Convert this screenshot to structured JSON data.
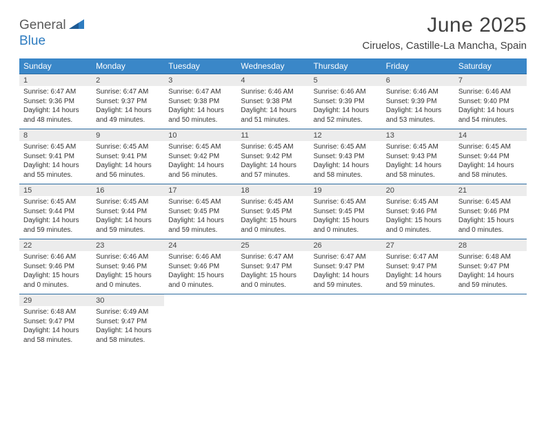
{
  "logo": {
    "part1": "General",
    "part2": "Blue"
  },
  "title": "June 2025",
  "location": "Ciruelos, Castille-La Mancha, Spain",
  "colors": {
    "header_bg": "#3a87c8",
    "header_text": "#ffffff",
    "daynum_bg": "#ececec",
    "row_border": "#2a6aa0",
    "logo_blue": "#2e7cc0",
    "logo_gray": "#5a5a5a",
    "page_bg": "#ffffff",
    "text": "#333333"
  },
  "typography": {
    "title_fontsize": 30,
    "location_fontsize": 15,
    "header_fontsize": 12,
    "daynum_fontsize": 11,
    "detail_fontsize": 10
  },
  "weekdays": [
    "Sunday",
    "Monday",
    "Tuesday",
    "Wednesday",
    "Thursday",
    "Friday",
    "Saturday"
  ],
  "weeks": [
    [
      {
        "n": "1",
        "sr": "6:47 AM",
        "ss": "9:36 PM",
        "dl": "14 hours and 48 minutes."
      },
      {
        "n": "2",
        "sr": "6:47 AM",
        "ss": "9:37 PM",
        "dl": "14 hours and 49 minutes."
      },
      {
        "n": "3",
        "sr": "6:47 AM",
        "ss": "9:38 PM",
        "dl": "14 hours and 50 minutes."
      },
      {
        "n": "4",
        "sr": "6:46 AM",
        "ss": "9:38 PM",
        "dl": "14 hours and 51 minutes."
      },
      {
        "n": "5",
        "sr": "6:46 AM",
        "ss": "9:39 PM",
        "dl": "14 hours and 52 minutes."
      },
      {
        "n": "6",
        "sr": "6:46 AM",
        "ss": "9:39 PM",
        "dl": "14 hours and 53 minutes."
      },
      {
        "n": "7",
        "sr": "6:46 AM",
        "ss": "9:40 PM",
        "dl": "14 hours and 54 minutes."
      }
    ],
    [
      {
        "n": "8",
        "sr": "6:45 AM",
        "ss": "9:41 PM",
        "dl": "14 hours and 55 minutes."
      },
      {
        "n": "9",
        "sr": "6:45 AM",
        "ss": "9:41 PM",
        "dl": "14 hours and 56 minutes."
      },
      {
        "n": "10",
        "sr": "6:45 AM",
        "ss": "9:42 PM",
        "dl": "14 hours and 56 minutes."
      },
      {
        "n": "11",
        "sr": "6:45 AM",
        "ss": "9:42 PM",
        "dl": "14 hours and 57 minutes."
      },
      {
        "n": "12",
        "sr": "6:45 AM",
        "ss": "9:43 PM",
        "dl": "14 hours and 58 minutes."
      },
      {
        "n": "13",
        "sr": "6:45 AM",
        "ss": "9:43 PM",
        "dl": "14 hours and 58 minutes."
      },
      {
        "n": "14",
        "sr": "6:45 AM",
        "ss": "9:44 PM",
        "dl": "14 hours and 58 minutes."
      }
    ],
    [
      {
        "n": "15",
        "sr": "6:45 AM",
        "ss": "9:44 PM",
        "dl": "14 hours and 59 minutes."
      },
      {
        "n": "16",
        "sr": "6:45 AM",
        "ss": "9:44 PM",
        "dl": "14 hours and 59 minutes."
      },
      {
        "n": "17",
        "sr": "6:45 AM",
        "ss": "9:45 PM",
        "dl": "14 hours and 59 minutes."
      },
      {
        "n": "18",
        "sr": "6:45 AM",
        "ss": "9:45 PM",
        "dl": "15 hours and 0 minutes."
      },
      {
        "n": "19",
        "sr": "6:45 AM",
        "ss": "9:45 PM",
        "dl": "15 hours and 0 minutes."
      },
      {
        "n": "20",
        "sr": "6:45 AM",
        "ss": "9:46 PM",
        "dl": "15 hours and 0 minutes."
      },
      {
        "n": "21",
        "sr": "6:45 AM",
        "ss": "9:46 PM",
        "dl": "15 hours and 0 minutes."
      }
    ],
    [
      {
        "n": "22",
        "sr": "6:46 AM",
        "ss": "9:46 PM",
        "dl": "15 hours and 0 minutes."
      },
      {
        "n": "23",
        "sr": "6:46 AM",
        "ss": "9:46 PM",
        "dl": "15 hours and 0 minutes."
      },
      {
        "n": "24",
        "sr": "6:46 AM",
        "ss": "9:46 PM",
        "dl": "15 hours and 0 minutes."
      },
      {
        "n": "25",
        "sr": "6:47 AM",
        "ss": "9:47 PM",
        "dl": "15 hours and 0 minutes."
      },
      {
        "n": "26",
        "sr": "6:47 AM",
        "ss": "9:47 PM",
        "dl": "14 hours and 59 minutes."
      },
      {
        "n": "27",
        "sr": "6:47 AM",
        "ss": "9:47 PM",
        "dl": "14 hours and 59 minutes."
      },
      {
        "n": "28",
        "sr": "6:48 AM",
        "ss": "9:47 PM",
        "dl": "14 hours and 59 minutes."
      }
    ],
    [
      {
        "n": "29",
        "sr": "6:48 AM",
        "ss": "9:47 PM",
        "dl": "14 hours and 58 minutes."
      },
      {
        "n": "30",
        "sr": "6:49 AM",
        "ss": "9:47 PM",
        "dl": "14 hours and 58 minutes."
      },
      null,
      null,
      null,
      null,
      null
    ]
  ]
}
